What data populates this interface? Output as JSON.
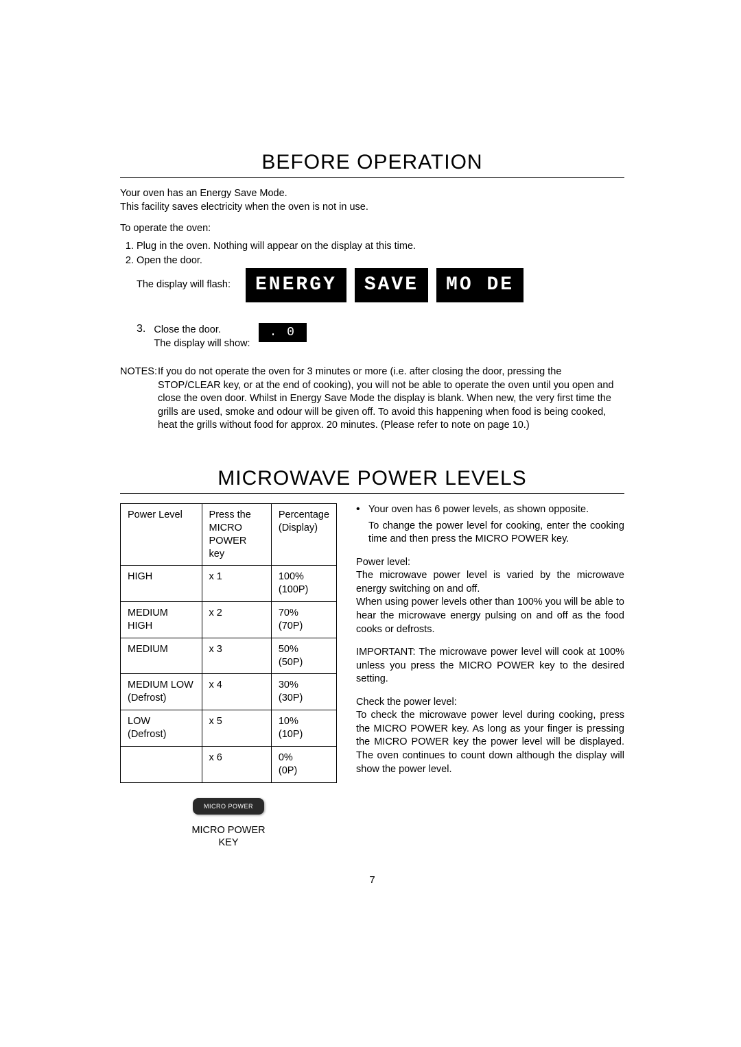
{
  "section1": {
    "title": "BEFORE OPERATION",
    "intro_line1": "Your oven has an Energy Save Mode.",
    "intro_line2": "This facility saves electricity when the oven is not in use.",
    "operate_label": "To operate the oven:",
    "step1": "Plug in the oven. Nothing will appear on the display at this time.",
    "step2": "Open the door.",
    "step2b": "The display will flash:",
    "lcd": [
      "ENERGY",
      "SAVE",
      "MO DE"
    ],
    "step3_num": "3.",
    "step3a": "Close the door.",
    "step3b": "The display will show:",
    "lcd2": ". 0",
    "notes_label": "NOTES:",
    "notes_body": "If you do not operate the oven for 3 minutes or more (i.e. after closing the door, pressing the STOP/CLEAR key, or at the end of cooking), you will not be able to operate the oven until you open and close the oven door. Whilst in Energy Save Mode the display is blank. When new, the very first time the grills are used, smoke and odour will be given off. To avoid this happening when food is being cooked, heat the grills without food for approx. 20 minutes. (Please refer to note on page 10.)"
  },
  "section2": {
    "title": "MICROWAVE POWER LEVELS",
    "table": {
      "headers": {
        "col1": "Power Level",
        "col2_line1": "Press the",
        "col2_line2": "MICRO",
        "col2_line3": "POWER key",
        "col3_line1": "Percentage",
        "col3_line2": "(Display)"
      },
      "rows": [
        {
          "level": "HIGH",
          "sub": "",
          "press": "x 1",
          "pct": "100%",
          "disp": "(100P)"
        },
        {
          "level": "MEDIUM HIGH",
          "sub": "",
          "press": "x 2",
          "pct": "70%",
          "disp": "(70P)"
        },
        {
          "level": "MEDIUM",
          "sub": "",
          "press": "x 3",
          "pct": "50%",
          "disp": "(50P)"
        },
        {
          "level": "MEDIUM LOW",
          "sub": "(Defrost)",
          "press": "x 4",
          "pct": "30%",
          "disp": "(30P)"
        },
        {
          "level": "LOW",
          "sub": "(Defrost)",
          "press": "x 5",
          "pct": "10%",
          "disp": "(10P)"
        },
        {
          "level": "",
          "sub": "",
          "press": "x 6",
          "pct": "0%",
          "disp": "(0P)"
        }
      ]
    },
    "button_label": "MICRO POWER",
    "button_caption_l1": "MICRO POWER",
    "button_caption_l2": "KEY",
    "right": {
      "p1a": "Your oven has 6 power levels, as shown opposite.",
      "p1b": "To change the power level for cooking, enter the cooking time and then press the MICRO POWER key.",
      "p2header": "Power level:",
      "p2a": "The microwave power level is varied by the microwave energy switching on and off.",
      "p2b": "When using power levels other than 100% you will be able to hear the microwave energy pulsing on and off as the food cooks or defrosts.",
      "p3": "IMPORTANT: The microwave power level will cook at 100% unless you press the MICRO POWER key to the desired setting.",
      "p4header": "Check the power level:",
      "p4": "To check the microwave power level during cooking, press the MICRO POWER key. As long as your finger is pressing the MICRO POWER key the power level will be displayed. The oven continues to count down although the display will show the power level."
    }
  },
  "page_number": "7",
  "colors": {
    "lcd_bg": "#000000",
    "lcd_fg": "#ffffff",
    "button_bg": "#2a2a2a"
  }
}
